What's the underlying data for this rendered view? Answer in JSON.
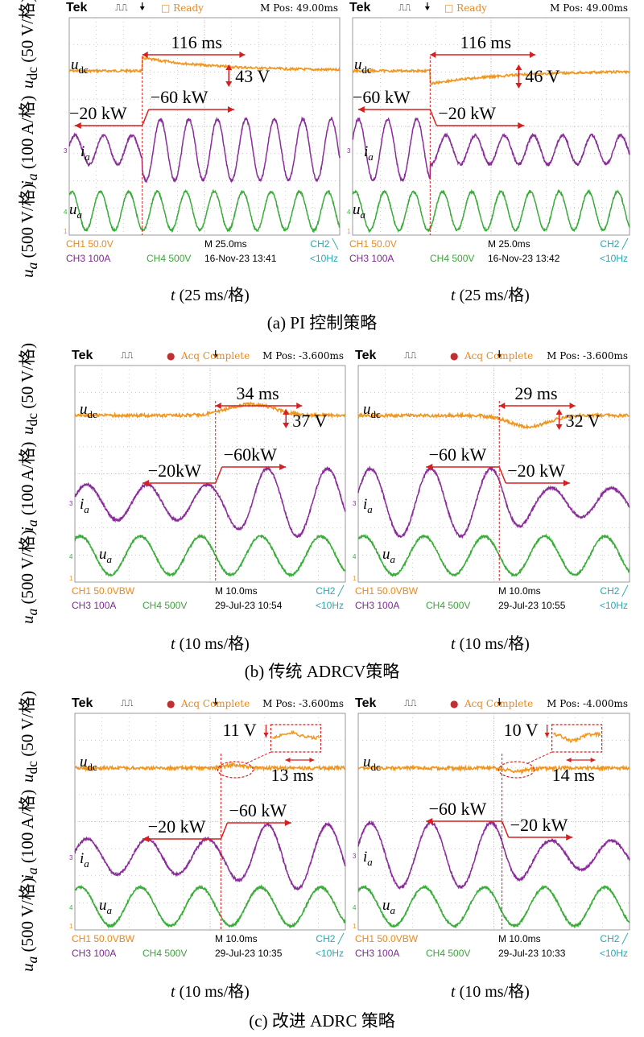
{
  "colors": {
    "udc": "#f0961e",
    "ia": "#8a2d9a",
    "ua": "#3aac3a",
    "marker": "#d62020",
    "grid": "#b8b8b8",
    "screen": "#ffffff"
  },
  "panels": [
    {
      "caption": "(a) PI 控制策略",
      "xlabel": "t (25 ms/格)",
      "ylabels": {
        "udc": "u_dc (50 V/格)",
        "ia": "i_a (100 A/格)",
        "ua": "u_a (500 V/格)"
      },
      "scopes": [
        {
          "brand": "Tek",
          "status": "Ready",
          "mpos": "M Pos: 49.00ms",
          "ch1": "CH1  50.0V",
          "ch3": "CH3  100A",
          "ch4": "CH4  500V",
          "timebase": "M 25.0ms",
          "date": "16-Nov-23 13:41",
          "ch2": "CH2 ╲",
          "freq": "<10Hz",
          "udc_label": "udc",
          "ia_label": "ia",
          "ua_label": "ua",
          "dip_time": "116 ms",
          "dip_volt": "43 V",
          "p_left": "−20 kW",
          "p_right": "−60 kW"
        },
        {
          "brand": "Tek",
          "status": "Ready",
          "mpos": "M Pos: 49.00ms",
          "ch1": "CH1  50.0V",
          "ch3": "CH3  100A",
          "ch4": "CH4  500V",
          "timebase": "M 25.0ms",
          "date": "16-Nov-23 13:42",
          "ch2": "CH2 ╱",
          "freq": "<10Hz",
          "udc_label": "udc",
          "ia_label": "ia",
          "ua_label": "ua",
          "dip_time": "116 ms",
          "dip_volt": "46 V",
          "p_left": "−60 kW",
          "p_right": "−20 kW"
        }
      ]
    },
    {
      "caption": "(b) 传统 ADRCV策略",
      "xlabel": "t (10 ms/格)",
      "ylabels": {
        "udc": "u_dc (50 V/格)",
        "ia": "i_a (100 A/格)",
        "ua": "u_a (500 V/格)"
      },
      "scopes": [
        {
          "brand": "Tek",
          "status": "Acq Complete",
          "mpos": "M Pos: -3.600ms",
          "ch1": "CH1  50.0VBW",
          "ch3": "CH3  100A",
          "ch4": "CH4  500V",
          "timebase": "M 10.0ms",
          "date": "29-Jul-23 10:54",
          "ch2": "CH2 ╱",
          "freq": "<10Hz",
          "udc_label": "udc",
          "ia_label": "ia",
          "ua_label": "ua",
          "dip_time": "34 ms",
          "dip_volt": "37 V",
          "p_left": "−20kW",
          "p_right": "−60kW"
        },
        {
          "brand": "Tek",
          "status": "Acq Complete",
          "mpos": "M Pos: -3.600ms",
          "ch1": "CH1  50.0VBW",
          "ch3": "CH3  100A",
          "ch4": "CH4  500V",
          "timebase": "M 10.0ms",
          "date": "29-Jul-23 10:55",
          "ch2": "CH2 ╱",
          "freq": "<10Hz",
          "udc_label": "udc",
          "ia_label": "ia",
          "ua_label": "ua",
          "dip_time": "29 ms",
          "dip_volt": "32 V",
          "p_left": "−60 kW",
          "p_right": "−20 kW"
        }
      ]
    },
    {
      "caption": "(c) 改进 ADRC 策略",
      "xlabel": "t (10 ms/格)",
      "ylabels": {
        "udc": "u_dc (50 V/格)",
        "ia": "i_a (100 A/格)",
        "ua": "u_a (500 V/格)"
      },
      "scopes": [
        {
          "brand": "Tek",
          "status": "Acq Complete",
          "mpos": "M Pos: -3.600ms",
          "ch1": "CH1  50.0VBW",
          "ch3": "CH3  100A",
          "ch4": "CH4  500V",
          "timebase": "M 10.0ms",
          "date": "29-Jul-23 10:35",
          "ch2": "CH2 ╱",
          "freq": "<10Hz",
          "udc_label": "udc",
          "ia_label": "ia",
          "ua_label": "ua",
          "dip_time": "13 ms",
          "dip_volt": "11 V",
          "p_left": "−20 kW",
          "p_right": "−60 kW"
        },
        {
          "brand": "Tek",
          "status": "Acq Complete",
          "mpos": "M Pos: -4.000ms",
          "ch1": "CH1  50.0VBW",
          "ch3": "CH3  100A",
          "ch4": "CH4  500V",
          "timebase": "M 10.0ms",
          "date": "29-Jul-23 10:33",
          "ch2": "CH2 ╱",
          "freq": "<10Hz",
          "udc_label": "udc",
          "ia_label": "ia",
          "ua_label": "ua",
          "dip_time": "14 ms",
          "dip_volt": "10 V",
          "p_left": "−60 kW",
          "p_right": "−20 kW"
        }
      ]
    }
  ],
  "chart_data": [
    {
      "type": "line",
      "title": "(a) PI 控制策略 — step −20 kW → −60 kW",
      "series": [
        {
          "name": "udc",
          "values": [
            0,
            43,
            0
          ]
        }
      ],
      "annotations": [
        "116 ms",
        "43 V",
        "−20 kW",
        "−60 kW"
      ]
    },
    {
      "type": "line",
      "title": "(a) PI 控制策略 — step −60 kW → −20 kW",
      "series": [
        {
          "name": "udc",
          "values": [
            0,
            -46,
            0
          ]
        }
      ],
      "annotations": [
        "116 ms",
        "46 V",
        "−60 kW",
        "−20 kW"
      ]
    },
    {
      "type": "line",
      "title": "(b) 传统 ADRCV策略 — step −20kW → −60kW",
      "series": [
        {
          "name": "udc",
          "values": [
            0,
            37,
            0
          ]
        }
      ],
      "annotations": [
        "34 ms",
        "37 V",
        "−20kW",
        "−60kW"
      ]
    },
    {
      "type": "line",
      "title": "(b) 传统 ADRCV策略 — step −60 kW → −20 kW",
      "series": [
        {
          "name": "udc",
          "values": [
            0,
            -32,
            0
          ]
        }
      ],
      "annotations": [
        "29 ms",
        "32 V",
        "−60 kW",
        "−20 kW"
      ]
    },
    {
      "type": "line",
      "title": "(c) 改进 ADRC 策略 — step −20 kW → −60 kW",
      "series": [
        {
          "name": "udc",
          "values": [
            0,
            11,
            0
          ]
        }
      ],
      "annotations": [
        "13 ms",
        "11 V",
        "−20 kW",
        "−60 kW"
      ]
    },
    {
      "type": "line",
      "title": "(c) 改进 ADRC 策略 — step −60 kW → −20 kW",
      "series": [
        {
          "name": "udc",
          "values": [
            0,
            -10,
            0
          ]
        }
      ],
      "annotations": [
        "14 ms",
        "10 V",
        "−60 kW",
        "−20 kW"
      ]
    }
  ]
}
